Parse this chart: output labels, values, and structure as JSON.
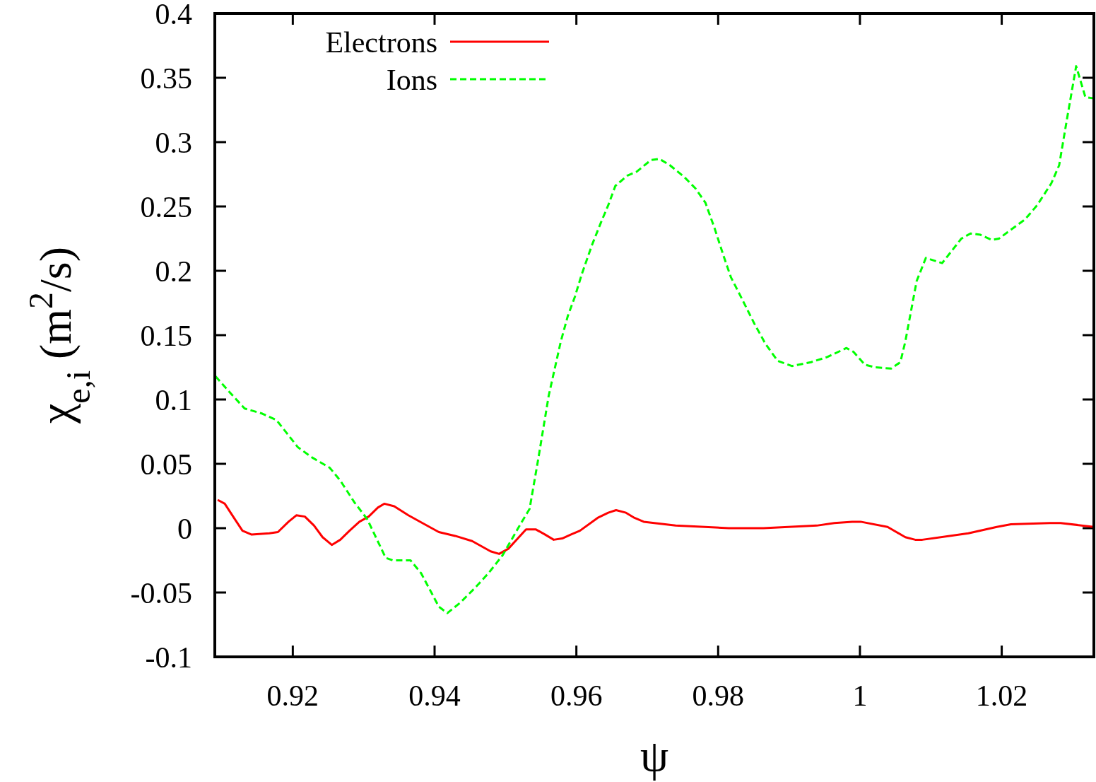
{
  "chart_data": {
    "type": "line",
    "xlabel": "ψ",
    "ylabel": "χ$_{e,i}$  (m$^{2}$/s)",
    "xlim": [
      0.909,
      1.033
    ],
    "xticks": [
      0.92,
      0.94,
      0.96,
      0.98,
      1,
      1.02
    ],
    "ylim": [
      -0.1,
      0.4
    ],
    "yticks": [
      -0.1,
      -0.05,
      0,
      0.05,
      0.1,
      0.15,
      0.2,
      0.25,
      0.3,
      0.35,
      0.4
    ],
    "grid": false,
    "legend": "top left",
    "series": [
      {
        "name": "Electrons",
        "color": "#ff0000",
        "line_style": "solid",
        "x": [
          0.9094,
          0.9104,
          0.9117,
          0.9129,
          0.9142,
          0.9167,
          0.9179,
          0.9194,
          0.9205,
          0.9217,
          0.923,
          0.9242,
          0.9255,
          0.9267,
          0.928,
          0.9294,
          0.9307,
          0.932,
          0.9329,
          0.9343,
          0.9363,
          0.9386,
          0.9406,
          0.9429,
          0.9453,
          0.9479,
          0.9491,
          0.9504,
          0.9529,
          0.9543,
          0.9556,
          0.9568,
          0.958,
          0.9592,
          0.9605,
          0.963,
          0.9645,
          0.9656,
          0.967,
          0.9682,
          0.9695,
          0.974,
          0.9815,
          0.9864,
          0.9939,
          0.9964,
          0.9989,
          1.0001,
          1.0039,
          1.0064,
          1.0078,
          1.0088,
          1.0153,
          1.0193,
          1.0213,
          1.0268,
          1.0283,
          1.033
        ],
        "values": [
          0.022,
          0.019,
          0.008,
          -0.002,
          -0.005,
          -0.004,
          -0.003,
          0.005,
          0.01,
          0.009,
          0.002,
          -0.007,
          -0.013,
          -0.009,
          -0.002,
          0.005,
          0.009,
          0.016,
          0.019,
          0.017,
          0.01,
          0.003,
          -0.003,
          -0.006,
          -0.01,
          -0.018,
          -0.02,
          -0.016,
          -0.001,
          -0.001,
          -0.005,
          -0.009,
          -0.008,
          -0.005,
          -0.002,
          0.008,
          0.012,
          0.014,
          0.012,
          0.008,
          0.005,
          0.002,
          0.0,
          0.0,
          0.002,
          0.004,
          0.005,
          0.005,
          0.001,
          -0.007,
          -0.009,
          -0.009,
          -0.004,
          0.001,
          0.003,
          0.004,
          0.004,
          0.001
        ]
      },
      {
        "name": "Ions",
        "color": "#00ff00",
        "line_style": "dashed",
        "x": [
          0.9091,
          0.9112,
          0.9132,
          0.9157,
          0.9177,
          0.9207,
          0.9227,
          0.9252,
          0.9267,
          0.9287,
          0.9305,
          0.9331,
          0.9341,
          0.9366,
          0.9381,
          0.9406,
          0.9418,
          0.9436,
          0.9456,
          0.9476,
          0.9496,
          0.9521,
          0.9534,
          0.9546,
          0.9561,
          0.9578,
          0.9588,
          0.9598,
          0.9608,
          0.9622,
          0.9635,
          0.9645,
          0.9655,
          0.9672,
          0.9685,
          0.9705,
          0.9717,
          0.9732,
          0.9752,
          0.9768,
          0.9782,
          0.9795,
          0.9808,
          0.9818,
          0.9831,
          0.9851,
          0.9867,
          0.9884,
          0.9904,
          0.9931,
          0.9954,
          0.9981,
          0.9991,
          1.0007,
          1.0021,
          1.0044,
          1.0057,
          1.0064,
          1.008,
          1.0093,
          1.0116,
          1.0143,
          1.0156,
          1.017,
          1.0186,
          1.0196,
          1.0233,
          1.025,
          1.027,
          1.0281,
          1.0293,
          1.0305,
          1.0318,
          1.033
        ],
        "values": [
          0.118,
          0.105,
          0.093,
          0.089,
          0.084,
          0.063,
          0.055,
          0.047,
          0.037,
          0.02,
          0.007,
          -0.023,
          -0.025,
          -0.025,
          -0.035,
          -0.061,
          -0.066,
          -0.058,
          -0.047,
          -0.035,
          -0.021,
          0.003,
          0.015,
          0.053,
          0.103,
          0.145,
          0.165,
          0.18,
          0.198,
          0.22,
          0.238,
          0.251,
          0.266,
          0.274,
          0.277,
          0.286,
          0.287,
          0.282,
          0.273,
          0.264,
          0.253,
          0.233,
          0.211,
          0.195,
          0.181,
          0.159,
          0.143,
          0.13,
          0.126,
          0.129,
          0.133,
          0.14,
          0.137,
          0.127,
          0.125,
          0.124,
          0.129,
          0.145,
          0.192,
          0.21,
          0.206,
          0.225,
          0.229,
          0.228,
          0.224,
          0.225,
          0.24,
          0.251,
          0.268,
          0.282,
          0.321,
          0.359,
          0.335,
          0.334
        ]
      }
    ]
  }
}
